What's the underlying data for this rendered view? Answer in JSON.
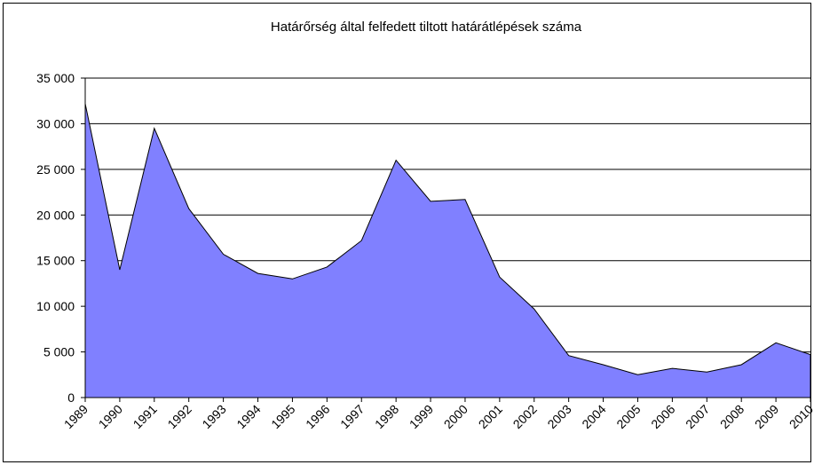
{
  "chart_data": {
    "type": "area",
    "title": "Határőrség által felfedett tiltott határátlépések száma",
    "categories": [
      "1989",
      "1990",
      "1991",
      "1992",
      "1993",
      "1994",
      "1995",
      "1996",
      "1997",
      "1998",
      "1999",
      "2000",
      "2001",
      "2002",
      "2003",
      "2004",
      "2005",
      "2006",
      "2007",
      "2008",
      "2009",
      "2010"
    ],
    "values": [
      32200,
      14000,
      29500,
      20700,
      15700,
      13600,
      13000,
      14300,
      17200,
      26000,
      21500,
      21700,
      13200,
      9700,
      4600,
      3600,
      2500,
      3200,
      2800,
      3600,
      6000,
      4700
    ],
    "color": "#8080ff",
    "ylim": [
      0,
      35000
    ],
    "yticks": [
      0,
      {
        "value": 5000,
        "label": "5 000"
      },
      {
        "value": 10000,
        "label": "10 000"
      },
      {
        "value": 15000,
        "label": "15 000"
      },
      {
        "value": 20000,
        "label": "20 000"
      },
      {
        "value": 25000,
        "label": "25 000"
      },
      {
        "value": 30000,
        "label": "30 000"
      },
      {
        "value": 35000,
        "label": "35 000"
      }
    ],
    "grid": true
  }
}
